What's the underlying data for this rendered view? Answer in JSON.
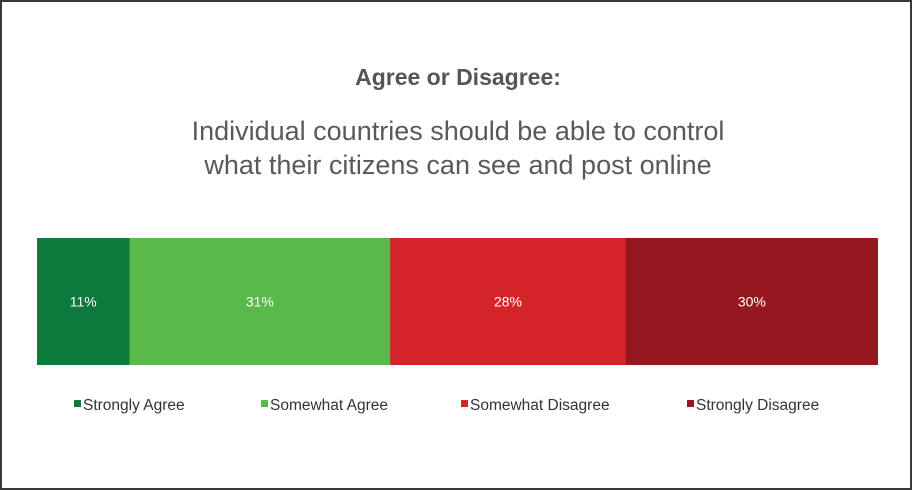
{
  "chart_data": {
    "type": "bar",
    "orientation": "horizontal-stacked-100",
    "title": "Agree or Disagree:",
    "subtitle_lines": [
      "Individual countries should be able to control",
      "what their citizens can see and post online"
    ],
    "series": [
      {
        "name": "Strongly Agree",
        "value": 11,
        "label": "11%",
        "color": "#0d7a3c"
      },
      {
        "name": "Somewhat Agree",
        "value": 31,
        "label": "31%",
        "color": "#5ab94b"
      },
      {
        "name": "Somewhat Disagree",
        "value": 28,
        "label": "28%",
        "color": "#d42428"
      },
      {
        "name": "Strongly Disagree",
        "value": 30,
        "label": "30%",
        "color": "#94181d"
      }
    ],
    "legend_position": "bottom",
    "grid": false
  }
}
